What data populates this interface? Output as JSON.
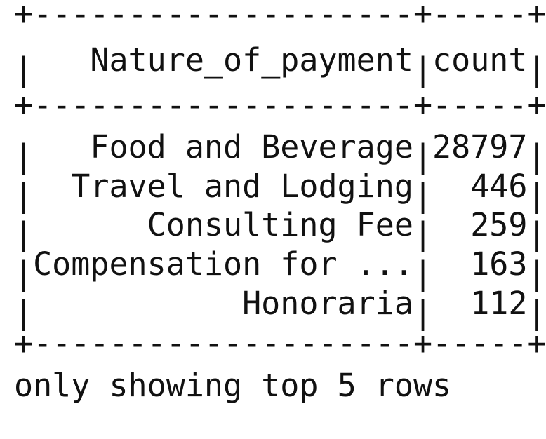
{
  "table": {
    "columns": [
      "Nature_of_payment",
      "count"
    ],
    "rows": [
      [
        "Food and Beverage",
        28797
      ],
      [
        "Travel and Lodging",
        446
      ],
      [
        "Consulting Fee",
        259
      ],
      [
        "Compensation for ...",
        163
      ],
      [
        "Honoraria",
        112
      ]
    ]
  },
  "footer": "only showing top 5 rows"
}
